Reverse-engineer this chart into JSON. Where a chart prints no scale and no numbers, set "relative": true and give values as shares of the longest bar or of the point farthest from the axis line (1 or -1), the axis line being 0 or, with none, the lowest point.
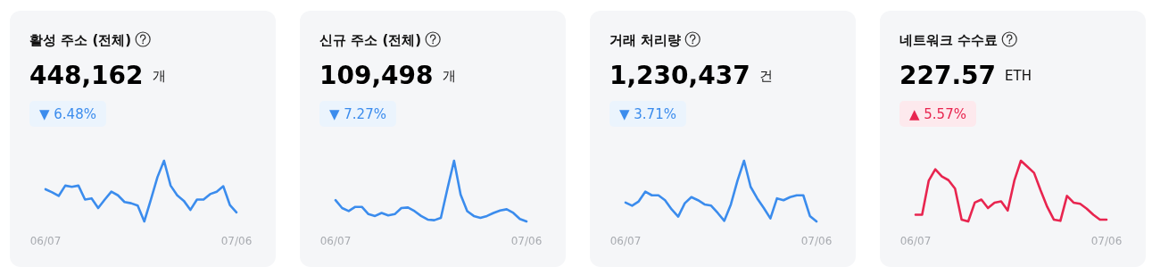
{
  "chart_data": [
    {
      "type": "line",
      "relative": true,
      "title": "활성 주소 (전체)",
      "subtitle": "448,162",
      "annotations": [
        "개",
        "▼ 6.48%"
      ],
      "categories": [
        "06/07",
        null,
        null,
        null,
        null,
        null,
        null,
        null,
        null,
        null,
        null,
        null,
        null,
        null,
        null,
        null,
        null,
        null,
        null,
        null,
        null,
        null,
        null,
        null,
        null,
        null,
        null,
        null,
        null,
        "07/06"
      ],
      "series": [
        {
          "color": "#3b8ced",
          "values": [
            0.53,
            0.48,
            0.42,
            0.59,
            0.57,
            0.59,
            0.36,
            0.38,
            0.22,
            0.36,
            0.49,
            0.43,
            0.32,
            0.3,
            0.26,
            0,
            0.36,
            0.73,
            1,
            0.59,
            0.43,
            0.34,
            0.19,
            0.36,
            0.36,
            0.45,
            0.49,
            0.58,
            0.27,
            0.15
          ]
        }
      ]
    },
    {
      "type": "line",
      "relative": true,
      "title": "신규 주소 (전체)",
      "subtitle": "109,498",
      "annotations": [
        "개",
        "▼ 7.27%"
      ],
      "categories": [
        "06/07",
        null,
        null,
        null,
        null,
        null,
        null,
        null,
        null,
        null,
        null,
        null,
        null,
        null,
        null,
        null,
        null,
        null,
        null,
        null,
        null,
        null,
        null,
        null,
        null,
        null,
        null,
        null,
        null,
        "07/06"
      ],
      "series": [
        {
          "color": "#3b8ced",
          "values": [
            0.35,
            0.22,
            0.17,
            0.24,
            0.24,
            0.12,
            0.09,
            0.14,
            0.1,
            0.12,
            0.22,
            0.23,
            0.17,
            0.09,
            0.03,
            0.02,
            0.06,
            0.54,
            1,
            0.44,
            0.17,
            0.09,
            0.06,
            0.09,
            0.14,
            0.18,
            0.2,
            0.14,
            0.04,
            0
          ]
        }
      ]
    },
    {
      "type": "line",
      "relative": true,
      "title": "거래 처리량",
      "subtitle": "1,230,437",
      "annotations": [
        "건",
        "▼ 3.71%"
      ],
      "categories": [
        "06/07",
        null,
        null,
        null,
        null,
        null,
        null,
        null,
        null,
        null,
        null,
        null,
        null,
        null,
        null,
        null,
        null,
        null,
        null,
        null,
        null,
        null,
        null,
        null,
        null,
        null,
        null,
        null,
        null,
        "07/06"
      ],
      "series": [
        {
          "color": "#3b8ced",
          "values": [
            0.31,
            0.26,
            0.33,
            0.49,
            0.43,
            0.43,
            0.35,
            0.2,
            0.08,
            0.3,
            0.4,
            0.35,
            0.28,
            0.26,
            0.14,
            0.01,
            0.28,
            0.67,
            1,
            0.57,
            0.38,
            0.22,
            0.05,
            0.38,
            0.35,
            0.4,
            0.43,
            0.43,
            0.09,
            0
          ]
        }
      ]
    },
    {
      "type": "line",
      "relative": true,
      "title": "네트워크 수수료",
      "subtitle": "227.57",
      "annotations": [
        "ETH",
        "▲ 5.57%"
      ],
      "categories": [
        "06/07",
        null,
        null,
        null,
        null,
        null,
        null,
        null,
        null,
        null,
        null,
        null,
        null,
        null,
        null,
        null,
        null,
        null,
        null,
        null,
        null,
        null,
        null,
        null,
        null,
        null,
        null,
        null,
        null,
        "07/06"
      ],
      "series": [
        {
          "color": "#e8254f",
          "values": [
            0.11,
            0.11,
            0.67,
            0.86,
            0.74,
            0.68,
            0.54,
            0.03,
            0,
            0.31,
            0.36,
            0.22,
            0.31,
            0.33,
            0.18,
            0.67,
            1,
            0.9,
            0.8,
            0.51,
            0.24,
            0.03,
            0.01,
            0.42,
            0.31,
            0.29,
            0.21,
            0.11,
            0.03,
            0.03
          ]
        }
      ]
    }
  ]
}
